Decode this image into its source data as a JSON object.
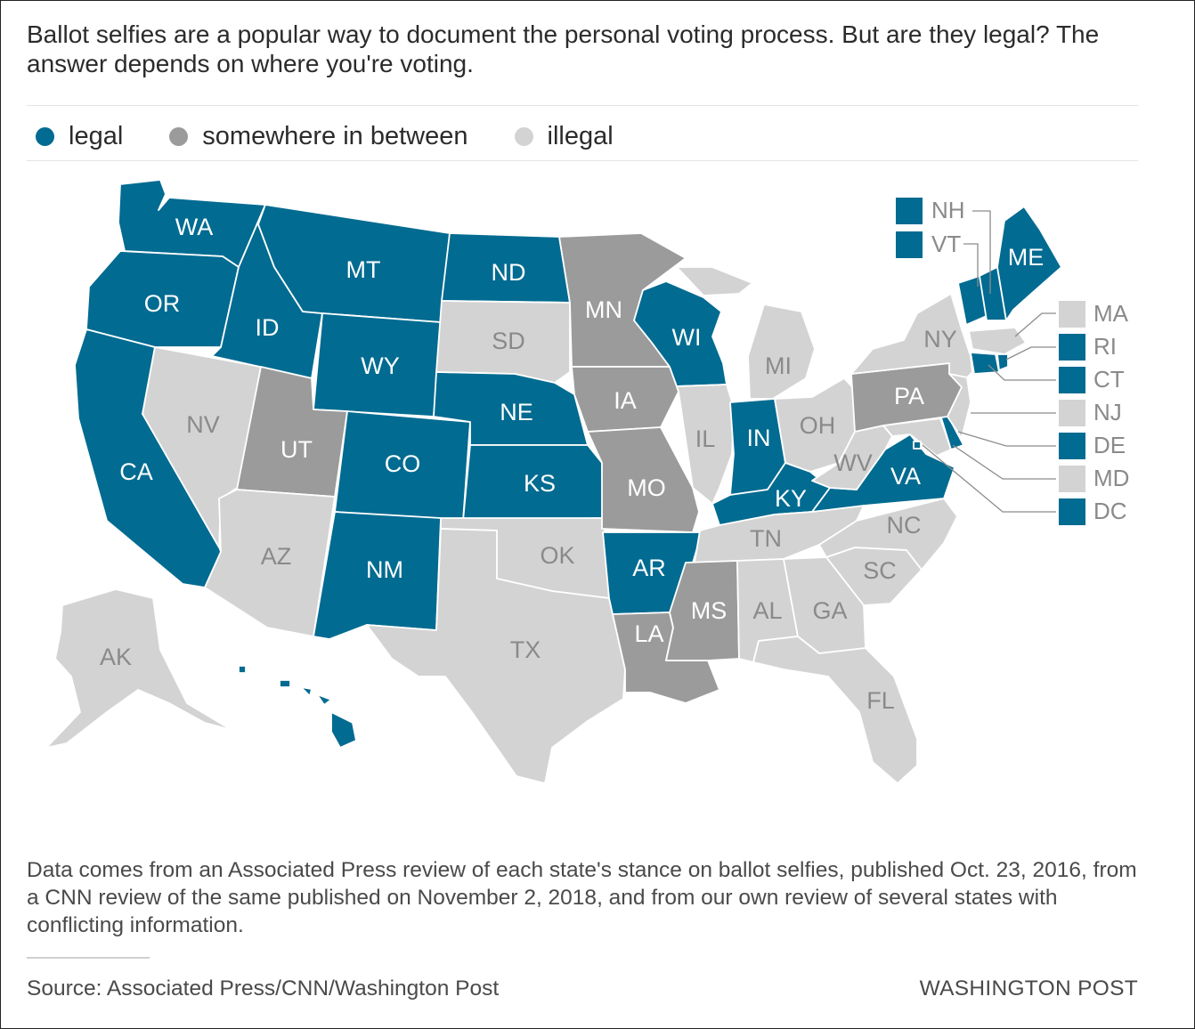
{
  "title": "Ballot selfies are a popular way to document the personal voting process. But are they legal? The answer depends on where you're voting.",
  "legend": [
    {
      "label": "legal",
      "key": "legal"
    },
    {
      "label": "somewhere in between",
      "key": "between"
    },
    {
      "label": "illegal",
      "key": "illegal"
    }
  ],
  "colors": {
    "legal": "#016b91",
    "between": "#9b9b9b",
    "illegal": "#d3d3d3",
    "label_on_dark": "#ffffff",
    "label_on_light": "#8a8a8a"
  },
  "states": [
    {
      "abbr": "WA",
      "status": "legal"
    },
    {
      "abbr": "OR",
      "status": "legal"
    },
    {
      "abbr": "CA",
      "status": "legal"
    },
    {
      "abbr": "ID",
      "status": "legal"
    },
    {
      "abbr": "NV",
      "status": "illegal"
    },
    {
      "abbr": "MT",
      "status": "legal"
    },
    {
      "abbr": "WY",
      "status": "legal"
    },
    {
      "abbr": "UT",
      "status": "between"
    },
    {
      "abbr": "AZ",
      "status": "illegal"
    },
    {
      "abbr": "CO",
      "status": "legal"
    },
    {
      "abbr": "NM",
      "status": "legal"
    },
    {
      "abbr": "ND",
      "status": "legal"
    },
    {
      "abbr": "SD",
      "status": "illegal"
    },
    {
      "abbr": "NE",
      "status": "legal"
    },
    {
      "abbr": "KS",
      "status": "legal"
    },
    {
      "abbr": "OK",
      "status": "illegal"
    },
    {
      "abbr": "TX",
      "status": "illegal"
    },
    {
      "abbr": "MN",
      "status": "between"
    },
    {
      "abbr": "IA",
      "status": "between"
    },
    {
      "abbr": "MO",
      "status": "between"
    },
    {
      "abbr": "AR",
      "status": "legal"
    },
    {
      "abbr": "LA",
      "status": "between"
    },
    {
      "abbr": "WI",
      "status": "legal"
    },
    {
      "abbr": "IL",
      "status": "illegal"
    },
    {
      "abbr": "MI",
      "status": "illegal"
    },
    {
      "abbr": "IN",
      "status": "legal"
    },
    {
      "abbr": "OH",
      "status": "illegal"
    },
    {
      "abbr": "KY",
      "status": "legal"
    },
    {
      "abbr": "TN",
      "status": "illegal"
    },
    {
      "abbr": "MS",
      "status": "between"
    },
    {
      "abbr": "AL",
      "status": "illegal"
    },
    {
      "abbr": "GA",
      "status": "illegal"
    },
    {
      "abbr": "FL",
      "status": "illegal"
    },
    {
      "abbr": "SC",
      "status": "illegal"
    },
    {
      "abbr": "NC",
      "status": "illegal"
    },
    {
      "abbr": "VA",
      "status": "legal"
    },
    {
      "abbr": "WV",
      "status": "illegal"
    },
    {
      "abbr": "PA",
      "status": "between"
    },
    {
      "abbr": "NY",
      "status": "illegal"
    },
    {
      "abbr": "ME",
      "status": "legal"
    },
    {
      "abbr": "AK",
      "status": "illegal"
    },
    {
      "abbr": "HI",
      "status": "legal"
    }
  ],
  "small_states": [
    {
      "abbr": "NH",
      "status": "legal"
    },
    {
      "abbr": "VT",
      "status": "legal"
    },
    {
      "abbr": "MA",
      "status": "illegal"
    },
    {
      "abbr": "RI",
      "status": "legal"
    },
    {
      "abbr": "CT",
      "status": "legal"
    },
    {
      "abbr": "NJ",
      "status": "illegal"
    },
    {
      "abbr": "DE",
      "status": "legal"
    },
    {
      "abbr": "MD",
      "status": "illegal"
    },
    {
      "abbr": "DC",
      "status": "legal"
    }
  ],
  "notes": "Data comes from an Associated Press review of each state's stance on ballot selfies, published Oct. 23, 2016, from a CNN review of the same published on November 2, 2018, and from our own review of several states with conflicting information.",
  "source": "Source: Associated Press/CNN/Washington Post",
  "credit": "WASHINGTON POST"
}
